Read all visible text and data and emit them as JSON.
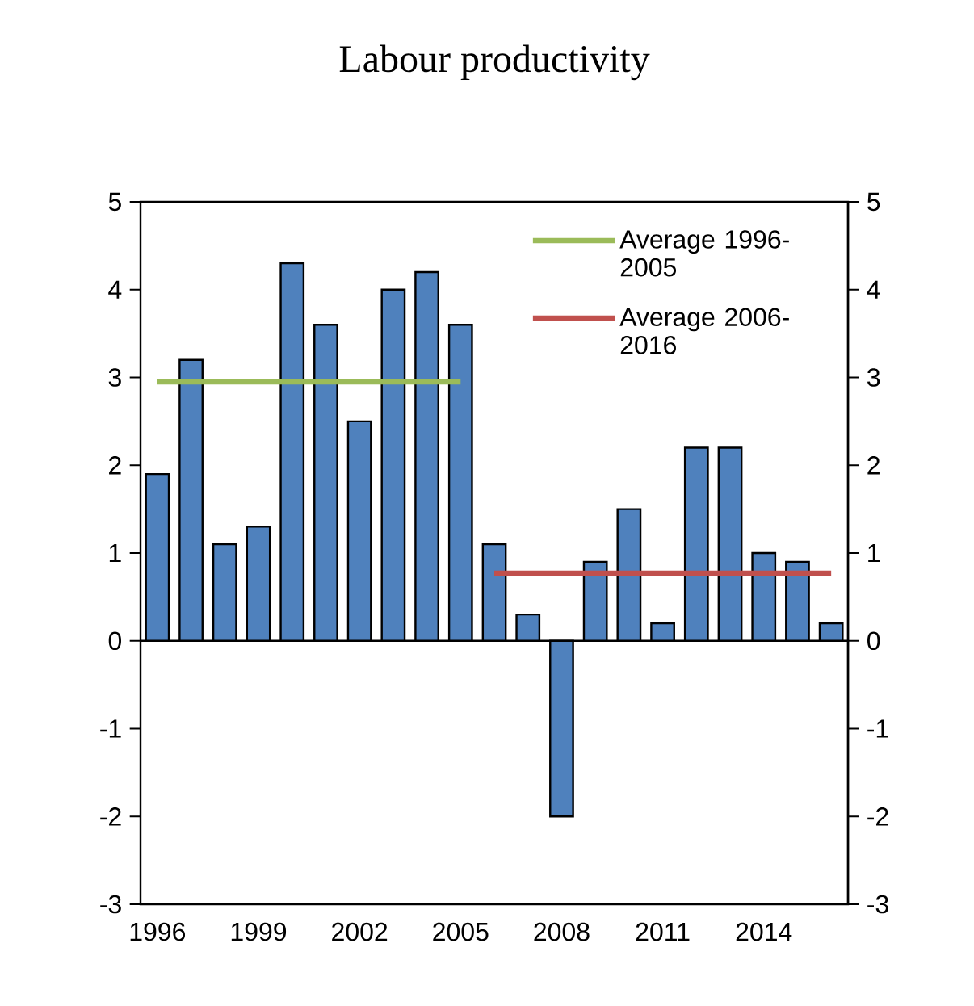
{
  "chart_data": {
    "type": "bar",
    "title": "Labour productivity",
    "categories": [
      "1996",
      null,
      null,
      "1999",
      null,
      null,
      "2002",
      null,
      null,
      "2005",
      null,
      null,
      "2008",
      null,
      null,
      "2011",
      null,
      null,
      "2014",
      null,
      null
    ],
    "series": [
      {
        "color": "#4f81bd",
        "values": [
          1.9,
          3.2,
          1.1,
          1.3,
          4.3,
          3.6,
          2.5,
          4.0,
          4.2,
          3.6,
          1.1,
          0.3,
          -2.0,
          0.9,
          1.5,
          0.2,
          2.2,
          2.2,
          1.0,
          0.9,
          0.2
        ]
      },
      {
        "type": "line",
        "name": "Average 1996-2005",
        "color": "#9bbb59",
        "values": [
          2.95,
          2.95,
          2.95,
          2.95,
          2.95,
          2.95,
          2.95,
          2.95,
          2.95,
          2.95,
          null,
          null,
          null,
          null,
          null,
          null,
          null,
          null,
          null,
          null,
          null
        ]
      },
      {
        "type": "line",
        "name": "Average 2006-2016",
        "color": "#c0504d",
        "values": [
          null,
          null,
          null,
          null,
          null,
          null,
          null,
          null,
          null,
          null,
          0.77,
          0.77,
          0.77,
          0.77,
          0.77,
          0.77,
          0.77,
          0.77,
          0.77,
          0.77,
          0.77
        ]
      }
    ],
    "ylim": [
      -3,
      5
    ],
    "yticks": [
      -3,
      -2,
      -1,
      0,
      1,
      2,
      3,
      4,
      5
    ],
    "y2lim": [
      -3,
      5
    ],
    "y2ticks": [
      -3,
      -2,
      -1,
      0,
      1,
      2,
      3,
      4,
      5
    ],
    "legend": "top right",
    "marker": "none",
    "line_style": "solid"
  }
}
